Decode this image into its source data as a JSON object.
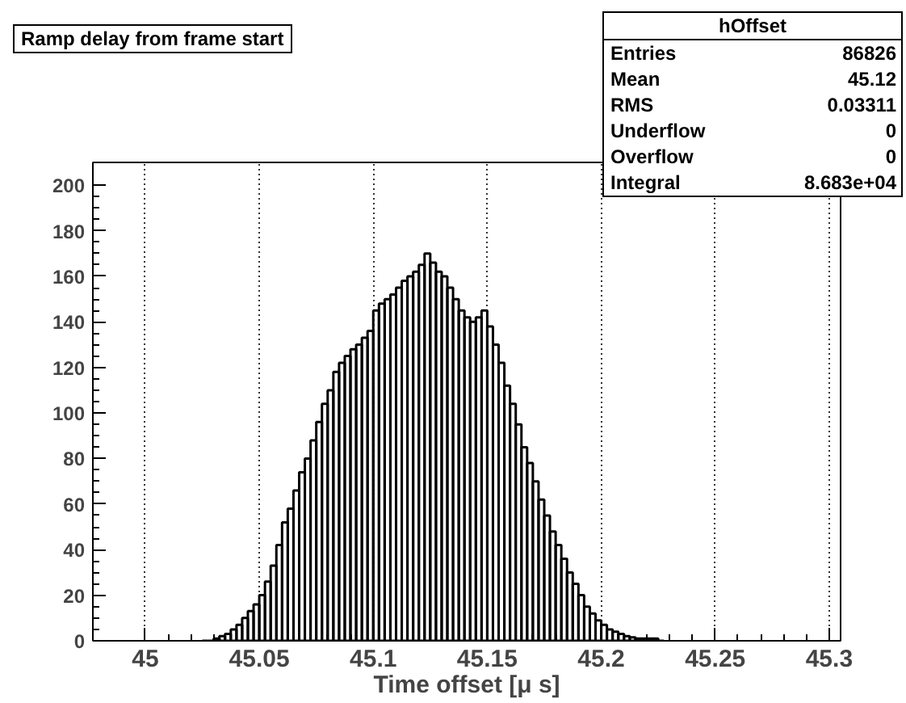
{
  "chart_data": {
    "type": "histogram",
    "title": "Ramp delay from frame start",
    "xlabel": "Time offset [μ s]",
    "bins": [
      45.025,
      45.0275,
      45.03,
      45.0325,
      45.035,
      45.0375,
      45.04,
      45.0425,
      45.045,
      45.0475,
      45.05,
      45.0525,
      45.055,
      45.0575,
      45.06,
      45.0625,
      45.065,
      45.0675,
      45.07,
      45.0725,
      45.075,
      45.0775,
      45.08,
      45.0825,
      45.085,
      45.0875,
      45.09,
      45.0925,
      45.095,
      45.0975,
      45.1,
      45.1025,
      45.105,
      45.1075,
      45.11,
      45.1125,
      45.115,
      45.1175,
      45.12,
      45.1225,
      45.125,
      45.1275,
      45.13,
      45.1325,
      45.135,
      45.1375,
      45.14,
      45.1425,
      45.145,
      45.1475,
      45.15,
      45.1525,
      45.155,
      45.1575,
      45.16,
      45.1625,
      45.165,
      45.1675,
      45.17,
      45.1725,
      45.175,
      45.1775,
      45.18,
      45.1825,
      45.185,
      45.1875,
      45.19,
      45.1925,
      45.195,
      45.1975,
      45.2,
      45.2025,
      45.205,
      45.2075,
      45.21,
      45.2125,
      45.215,
      45.2175,
      45.22,
      45.2225,
      45.225,
      45.2275
    ],
    "values": [
      0,
      0,
      1,
      2,
      3,
      5,
      7,
      10,
      13,
      16,
      20,
      26,
      33,
      42,
      52,
      58,
      66,
      74,
      80,
      88,
      96,
      104,
      110,
      118,
      122,
      125,
      128,
      130,
      133,
      136,
      145,
      148,
      150,
      152,
      155,
      158,
      160,
      162,
      165,
      170,
      166,
      162,
      160,
      155,
      150,
      145,
      142,
      140,
      142,
      145,
      138,
      130,
      122,
      112,
      104,
      95,
      85,
      78,
      70,
      62,
      55,
      48,
      42,
      36,
      30,
      25,
      20,
      15,
      12,
      9,
      7,
      5,
      4,
      3,
      2,
      1.5,
      1,
      1,
      1,
      1,
      0
    ],
    "color": "#000000",
    "xlim": [
      44.977,
      45.305
    ],
    "ylim": [
      0,
      210
    ],
    "xticks": [
      45,
      45.05,
      45.1,
      45.15,
      45.2,
      45.25,
      45.3
    ],
    "yticks": [
      0,
      20,
      40,
      60,
      80,
      100,
      120,
      140,
      160,
      180,
      200
    ],
    "grid": "x",
    "annotations": [
      "hOffset",
      "Entries 86826",
      "Mean 45.12",
      "RMS 0.03311",
      "Underflow 0",
      "Overflow 0",
      "Integral 8.683e+04"
    ]
  }
}
